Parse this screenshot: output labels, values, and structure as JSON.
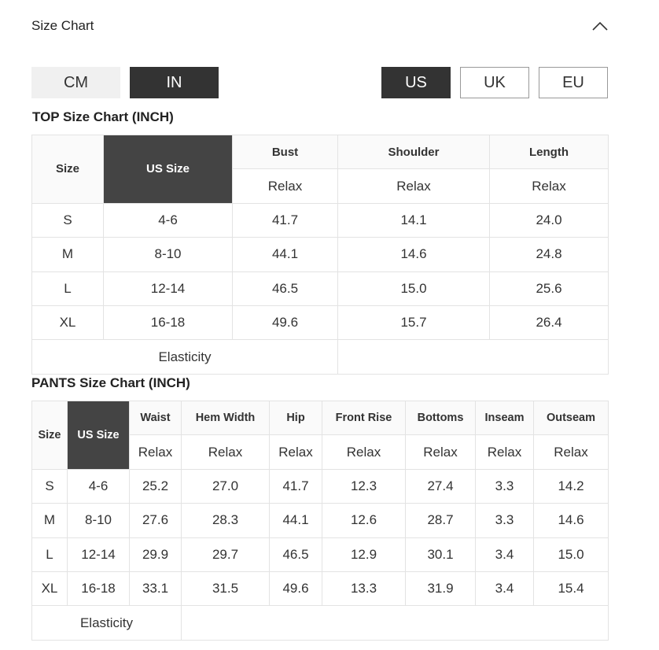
{
  "header": {
    "title": "Size Chart"
  },
  "unit_toggle": [
    "CM",
    "IN"
  ],
  "region_toggle": [
    "US",
    "UK",
    "EU"
  ],
  "top": {
    "title": "TOP Size Chart (INCH)",
    "columns": [
      "Size",
      "US Size",
      "Bust",
      "Shoulder",
      "Length"
    ],
    "subheader": [
      "Relax",
      "Relax",
      "Relax"
    ],
    "rows": [
      [
        "S",
        "4-6",
        "41.7",
        "14.1",
        "24.0"
      ],
      [
        "M",
        "8-10",
        "44.1",
        "14.6",
        "24.8"
      ],
      [
        "L",
        "12-14",
        "46.5",
        "15.0",
        "25.6"
      ],
      [
        "XL",
        "16-18",
        "49.6",
        "15.7",
        "26.4"
      ]
    ],
    "footer": "Elasticity"
  },
  "pants": {
    "title": "PANTS Size Chart (INCH)",
    "columns": [
      "Size",
      "US Size",
      "Waist",
      "Hem Width",
      "Hip",
      "Front Rise",
      "Bottoms",
      "Inseam",
      "Outseam"
    ],
    "subheader": [
      "Relax",
      "Relax",
      "Relax",
      "Relax",
      "Relax",
      "Relax",
      "Relax"
    ],
    "rows": [
      [
        "S",
        "4-6",
        "25.2",
        "27.0",
        "41.7",
        "12.3",
        "27.4",
        "3.3",
        "14.2"
      ],
      [
        "M",
        "8-10",
        "27.6",
        "28.3",
        "44.1",
        "12.6",
        "28.7",
        "3.3",
        "14.6"
      ],
      [
        "L",
        "12-14",
        "29.9",
        "29.7",
        "46.5",
        "12.9",
        "30.1",
        "3.4",
        "15.0"
      ],
      [
        "XL",
        "16-18",
        "33.1",
        "31.5",
        "49.6",
        "13.3",
        "31.9",
        "3.4",
        "15.4"
      ]
    ],
    "footer": "Elasticity"
  }
}
